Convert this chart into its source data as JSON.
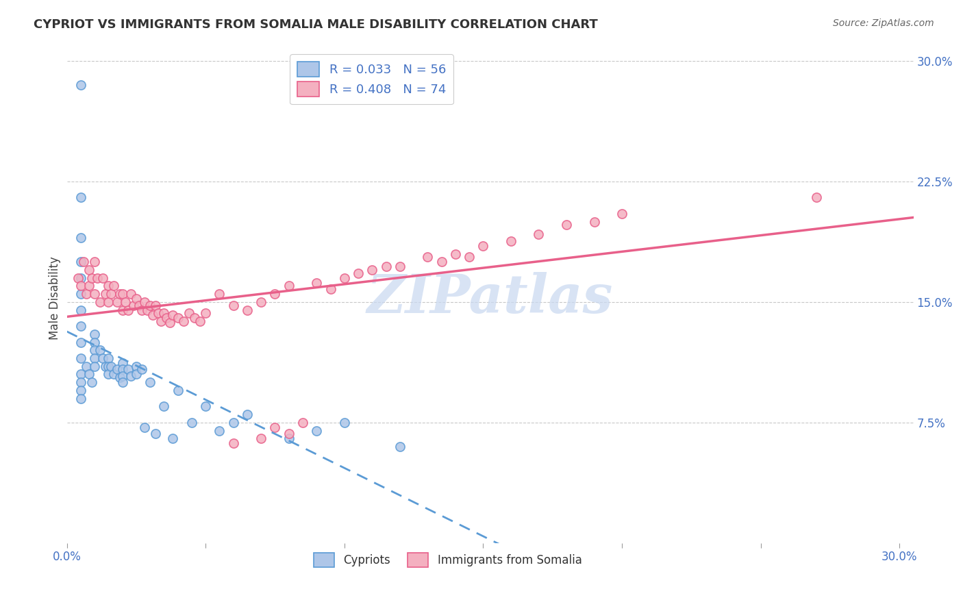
{
  "title": "CYPRIOT VS IMMIGRANTS FROM SOMALIA MALE DISABILITY CORRELATION CHART",
  "source": "Source: ZipAtlas.com",
  "ylabel": "Male Disability",
  "xlim": [
    0.0,
    0.305
  ],
  "ylim": [
    0.0,
    0.305
  ],
  "cypriot_R": 0.033,
  "cypriot_N": 56,
  "somalia_R": 0.408,
  "somalia_N": 74,
  "cypriot_color": "#aec6e8",
  "somalia_color": "#f4b0c0",
  "cypriot_edge_color": "#5b9bd5",
  "somalia_edge_color": "#e8608a",
  "cypriot_line_color": "#5b9bd5",
  "somalia_line_color": "#e8608a",
  "watermark": "ZIPatlas",
  "watermark_color": "#c8d8f0",
  "legend_label_1": "Cypriots",
  "legend_label_2": "Immigrants from Somalia",
  "grid_color": "#c8c8c8",
  "tick_color": "#4472c4",
  "cypriot_x": [
    0.005,
    0.005,
    0.005,
    0.005,
    0.005,
    0.005,
    0.005,
    0.005,
    0.005,
    0.005,
    0.005,
    0.005,
    0.005,
    0.005,
    0.007,
    0.008,
    0.009,
    0.01,
    0.01,
    0.01,
    0.01,
    0.01,
    0.012,
    0.013,
    0.014,
    0.015,
    0.015,
    0.015,
    0.016,
    0.017,
    0.018,
    0.019,
    0.02,
    0.02,
    0.02,
    0.02,
    0.022,
    0.023,
    0.025,
    0.025,
    0.027,
    0.028,
    0.03,
    0.032,
    0.035,
    0.038,
    0.04,
    0.045,
    0.05,
    0.055,
    0.06,
    0.065,
    0.08,
    0.09,
    0.1,
    0.12
  ],
  "cypriot_y": [
    0.285,
    0.215,
    0.19,
    0.175,
    0.165,
    0.155,
    0.145,
    0.135,
    0.125,
    0.115,
    0.105,
    0.1,
    0.095,
    0.09,
    0.11,
    0.105,
    0.1,
    0.13,
    0.125,
    0.12,
    0.115,
    0.11,
    0.12,
    0.115,
    0.11,
    0.115,
    0.11,
    0.105,
    0.11,
    0.105,
    0.108,
    0.103,
    0.112,
    0.108,
    0.104,
    0.1,
    0.108,
    0.104,
    0.11,
    0.105,
    0.108,
    0.072,
    0.1,
    0.068,
    0.085,
    0.065,
    0.095,
    0.075,
    0.085,
    0.07,
    0.075,
    0.08,
    0.065,
    0.07,
    0.075,
    0.06
  ],
  "somalia_x": [
    0.004,
    0.005,
    0.006,
    0.007,
    0.008,
    0.008,
    0.009,
    0.01,
    0.01,
    0.011,
    0.012,
    0.013,
    0.014,
    0.015,
    0.015,
    0.016,
    0.017,
    0.018,
    0.019,
    0.02,
    0.02,
    0.021,
    0.022,
    0.023,
    0.024,
    0.025,
    0.026,
    0.027,
    0.028,
    0.029,
    0.03,
    0.031,
    0.032,
    0.033,
    0.034,
    0.035,
    0.036,
    0.037,
    0.038,
    0.04,
    0.042,
    0.044,
    0.046,
    0.048,
    0.05,
    0.055,
    0.06,
    0.065,
    0.07,
    0.075,
    0.08,
    0.09,
    0.095,
    0.1,
    0.11,
    0.12,
    0.13,
    0.14,
    0.15,
    0.16,
    0.17,
    0.18,
    0.19,
    0.2,
    0.105,
    0.115,
    0.075,
    0.08,
    0.135,
    0.145,
    0.07,
    0.06,
    0.085,
    0.27
  ],
  "somalia_y": [
    0.165,
    0.16,
    0.175,
    0.155,
    0.17,
    0.16,
    0.165,
    0.175,
    0.155,
    0.165,
    0.15,
    0.165,
    0.155,
    0.16,
    0.15,
    0.155,
    0.16,
    0.15,
    0.155,
    0.145,
    0.155,
    0.15,
    0.145,
    0.155,
    0.148,
    0.152,
    0.148,
    0.145,
    0.15,
    0.145,
    0.148,
    0.142,
    0.148,
    0.143,
    0.138,
    0.143,
    0.14,
    0.137,
    0.142,
    0.14,
    0.138,
    0.143,
    0.14,
    0.138,
    0.143,
    0.155,
    0.148,
    0.145,
    0.15,
    0.155,
    0.16,
    0.162,
    0.158,
    0.165,
    0.17,
    0.172,
    0.178,
    0.18,
    0.185,
    0.188,
    0.192,
    0.198,
    0.2,
    0.205,
    0.168,
    0.172,
    0.072,
    0.068,
    0.175,
    0.178,
    0.065,
    0.062,
    0.075,
    0.215
  ]
}
